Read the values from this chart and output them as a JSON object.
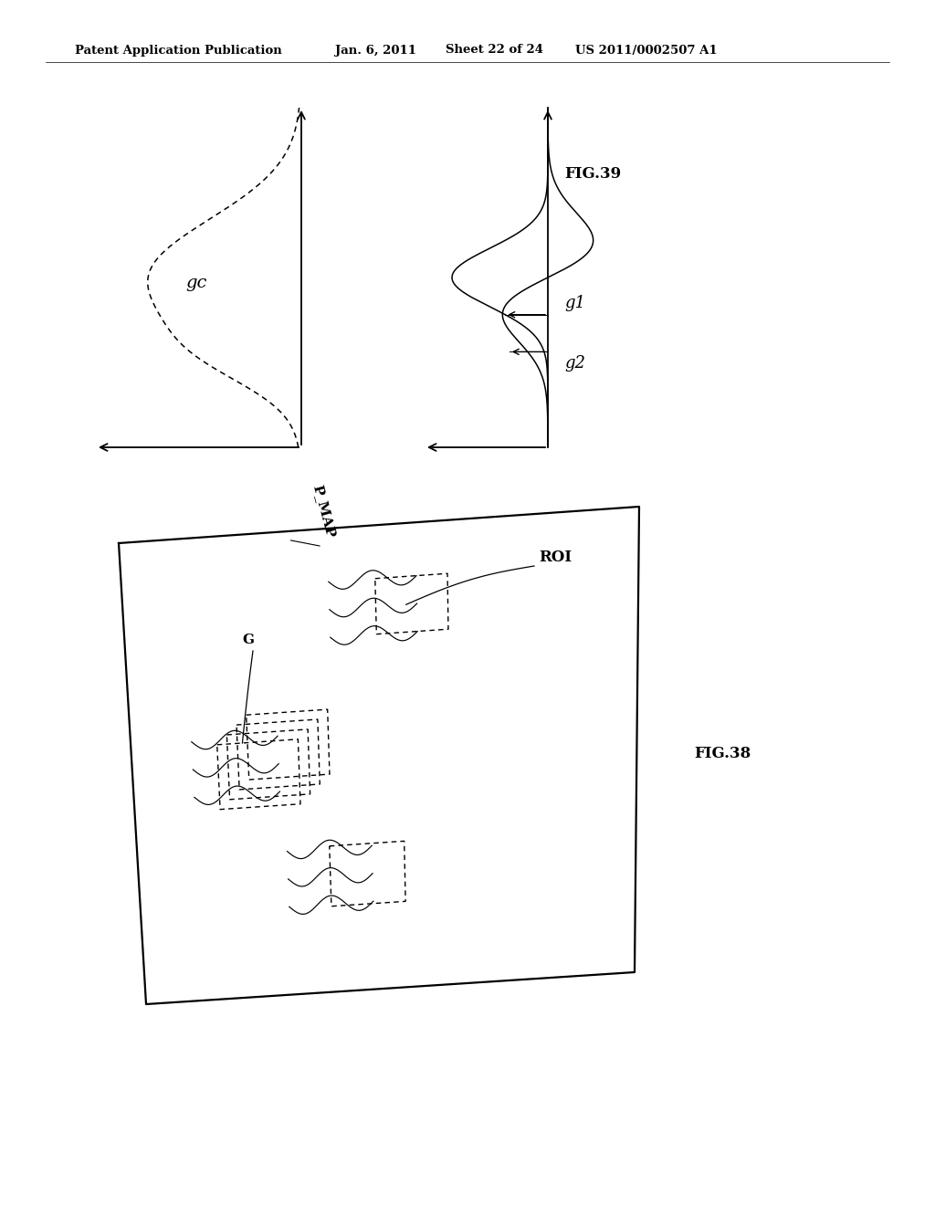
{
  "bg_color": "#ffffff",
  "header_text": "Patent Application Publication",
  "header_date": "Jan. 6, 2011",
  "header_sheet": "Sheet 22 of 24",
  "header_patent": "US 2011/0002507 A1",
  "fig38_label": "FIG.38",
  "fig39_label": "FIG.39",
  "gc_label": "gc",
  "g1_label": "g1",
  "g2_label": "g2",
  "pmap_label": "P_MAP",
  "roi_label": "ROI",
  "g_label": "G"
}
